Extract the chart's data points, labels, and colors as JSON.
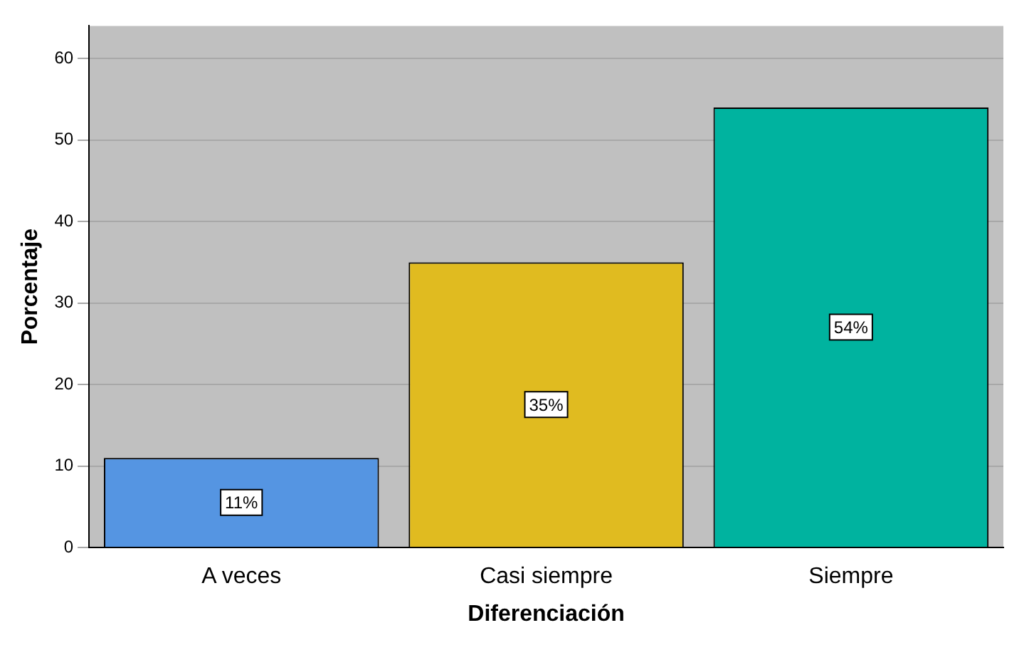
{
  "chart_data": {
    "type": "bar",
    "xlabel": "Diferenciación",
    "ylabel": "Porcentaje",
    "categories": [
      "A veces",
      "Casi siempre",
      "Siempre"
    ],
    "values": [
      11,
      35,
      54
    ],
    "colors": [
      "#5595e2",
      "#e0bb20",
      "#00b39f"
    ],
    "value_labels": [
      "11%",
      "35%",
      "54%"
    ],
    "ylim": [
      0,
      64
    ],
    "yticks": [
      0,
      10,
      20,
      30,
      40,
      50,
      60
    ],
    "grid": "y"
  }
}
